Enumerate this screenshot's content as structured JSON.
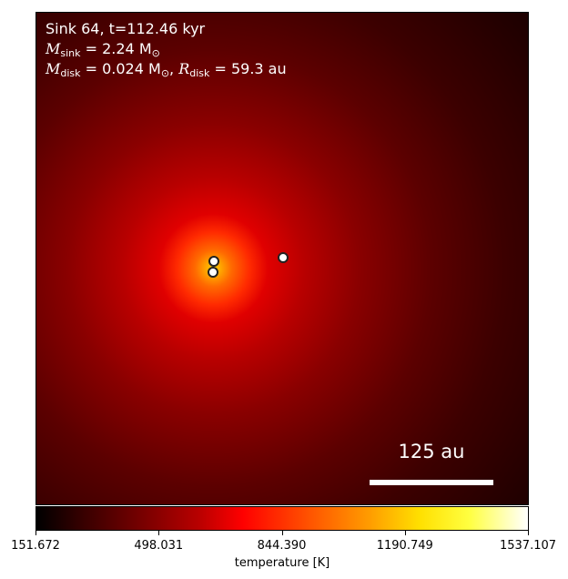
{
  "chart_data": {
    "type": "heatmap",
    "title_lines": {
      "line1": "Sink 64, t=112.46 kyr",
      "msink_symbol": "M",
      "msink_sub": "sink",
      "msink_value": " = 2.24 M",
      "msink_unit_sub": "⊙",
      "mdisk_symbol": "M",
      "mdisk_sub": "disk",
      "mdisk_value": " = 0.024 M",
      "mdisk_unit_sub": "⊙",
      "rdisk_sep": ", ",
      "rdisk_symbol": "R",
      "rdisk_sub": "disk",
      "rdisk_value": " = 59.3 au"
    },
    "scale_bar_label": "125 au",
    "colorbar": {
      "label": "temperature [K]",
      "min": 151.672,
      "max": 1537.107,
      "ticks": [
        "151.672",
        "498.031",
        "844.390",
        "1190.749",
        "1537.107"
      ],
      "colormap": "hot"
    },
    "sinks": [
      {
        "name": "sink-a",
        "x_frac": 0.36,
        "y_frac": 0.505
      },
      {
        "name": "sink-b",
        "x_frac": 0.358,
        "y_frac": 0.527
      },
      {
        "name": "sink-c",
        "x_frac": 0.5,
        "y_frac": 0.497
      }
    ]
  }
}
